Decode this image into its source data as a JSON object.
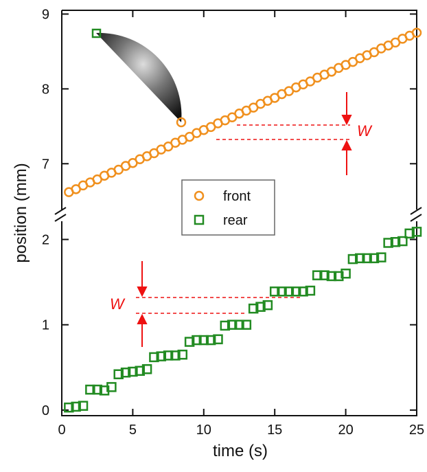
{
  "chart_data": {
    "type": "scatter",
    "xlabel": "time (s)",
    "ylabel": "position (mm)",
    "xlim": [
      0,
      25
    ],
    "xticks": [
      0,
      5,
      10,
      15,
      20,
      25
    ],
    "ylim": [
      -0.025,
      2.27
    ],
    "yticks": [
      0,
      1,
      2
    ],
    "y2lim": [
      6.36,
      9.05
    ],
    "y2ticks": [
      7,
      8,
      9
    ],
    "legend": "center",
    "annotations": [
      "W",
      "W"
    ],
    "x": [
      0.5,
      1,
      1.5,
      2,
      2.5,
      3,
      3.5,
      4,
      4.5,
      5,
      5.5,
      6,
      6.5,
      7,
      7.5,
      8,
      8.5,
      9,
      9.5,
      10,
      10.5,
      11,
      11.5,
      12,
      12.5,
      13,
      13.5,
      14,
      14.5,
      15,
      15.5,
      16,
      16.5,
      17,
      17.5,
      18,
      18.5,
      19,
      19.5,
      20,
      20.5,
      21,
      21.5,
      22,
      22.5,
      23,
      23.5,
      24,
      24.5,
      25
    ],
    "series": [
      {
        "name": "front",
        "color": "#f0901e",
        "marker": "circle",
        "axis": "y2",
        "values": [
          6.62,
          6.66,
          6.71,
          6.75,
          6.79,
          6.84,
          6.88,
          6.92,
          6.97,
          7.01,
          7.06,
          7.1,
          7.14,
          7.19,
          7.23,
          7.28,
          7.32,
          7.36,
          7.41,
          7.45,
          7.49,
          7.54,
          7.58,
          7.62,
          7.67,
          7.71,
          7.75,
          7.8,
          7.84,
          7.88,
          7.93,
          7.97,
          8.02,
          8.06,
          8.1,
          8.15,
          8.19,
          8.23,
          8.28,
          8.32,
          8.36,
          8.41,
          8.45,
          8.49,
          8.54,
          8.58,
          8.62,
          8.67,
          8.71,
          8.75
        ]
      },
      {
        "name": "rear",
        "color": "#228b22",
        "marker": "square",
        "axis": "y",
        "values": [
          0.03,
          0.04,
          0.05,
          0.24,
          0.24,
          0.23,
          0.27,
          0.42,
          0.44,
          0.45,
          0.46,
          0.48,
          0.62,
          0.63,
          0.64,
          0.64,
          0.65,
          0.8,
          0.82,
          0.82,
          0.82,
          0.83,
          0.99,
          1.0,
          1.0,
          1.0,
          1.19,
          1.21,
          1.23,
          1.39,
          1.39,
          1.39,
          1.39,
          1.39,
          1.4,
          1.58,
          1.58,
          1.57,
          1.57,
          1.6,
          1.77,
          1.78,
          1.78,
          1.78,
          1.79,
          1.96,
          1.97,
          1.98,
          2.07,
          2.09
        ]
      }
    ]
  }
}
